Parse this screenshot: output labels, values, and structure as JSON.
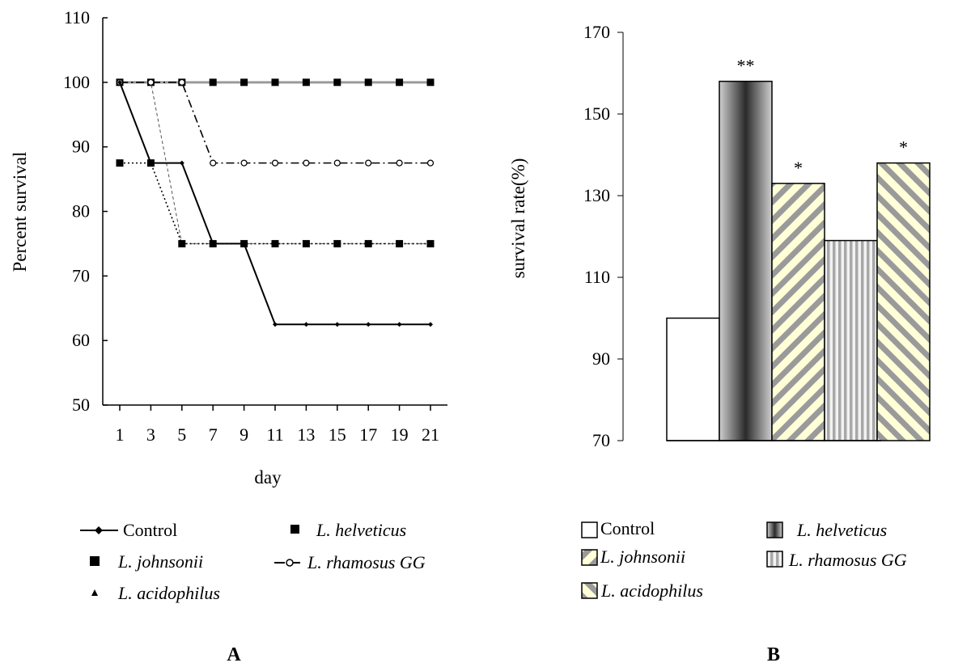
{
  "chart_data": [
    {
      "panel": "A",
      "type": "line",
      "xlabel": "day",
      "ylabel": "Percent survival",
      "x": [
        1,
        3,
        5,
        7,
        9,
        11,
        13,
        15,
        17,
        19,
        21
      ],
      "ylim": [
        50,
        110
      ],
      "yticks": [
        50,
        60,
        70,
        80,
        90,
        100,
        110
      ],
      "grid": false,
      "series": [
        {
          "name": "Control",
          "values": [
            100,
            87.5,
            87.5,
            75,
            75,
            62.5,
            62.5,
            62.5,
            62.5,
            62.5,
            62.5
          ],
          "marker": "diamond",
          "line": "solid"
        },
        {
          "name": "L. helveticus",
          "values": [
            100,
            100,
            100,
            100,
            100,
            100,
            100,
            100,
            100,
            100,
            100
          ],
          "marker": "square",
          "line": "gray"
        },
        {
          "name": "L. johnsonii",
          "values": [
            87.5,
            87.5,
            75,
            75,
            75,
            75,
            75,
            75,
            75,
            75,
            75
          ],
          "marker": "square",
          "line": "dotted"
        },
        {
          "name": "L. rhamosus GG",
          "values": [
            100,
            100,
            100,
            87.5,
            87.5,
            87.5,
            87.5,
            87.5,
            87.5,
            87.5,
            87.5
          ],
          "marker": "circle",
          "line": "dashdot"
        },
        {
          "name": "L. acidophilus",
          "values": [
            100,
            100,
            75,
            75,
            75,
            75,
            75,
            75,
            75,
            75,
            75
          ],
          "marker": "triangle",
          "line": "thin-dashed"
        }
      ],
      "legend": [
        "Control",
        "L. helveticus",
        "L. johnsonii",
        "L. rhamosus GG",
        "L. acidophilus"
      ]
    },
    {
      "panel": "B",
      "type": "bar",
      "ylabel": "survival rate(%)",
      "categories": [
        "Control",
        "L. helveticus",
        "L. johnsonii",
        "L. rhamosus GG",
        "L. acidophilus"
      ],
      "values": [
        100,
        158,
        133,
        119,
        138
      ],
      "annotations": [
        "",
        "**",
        "*",
        "",
        "*"
      ],
      "ylim": [
        70,
        170
      ],
      "yticks": [
        70,
        90,
        110,
        130,
        150,
        170
      ],
      "grid": false,
      "legend": [
        "Control",
        "L. helveticus",
        "L. johnsonii",
        "L. rhamosus GG",
        "L. acidophilus"
      ]
    }
  ],
  "legend_a": {
    "control": "Control",
    "helveticus": "L. helveticus",
    "johnsonii": "L. johnsonii",
    "rhamosus": "L. rhamosus GG",
    "acidophilus": "L. acidophilus"
  },
  "legend_b": {
    "control": "Control",
    "helveticus": "L. helveticus",
    "johnsonii": "L. johnsonii",
    "rhamosus": "L. rhamosus GG",
    "acidophilus": "L. acidophilus"
  },
  "panel_labels": {
    "a": "A",
    "b": "B"
  }
}
